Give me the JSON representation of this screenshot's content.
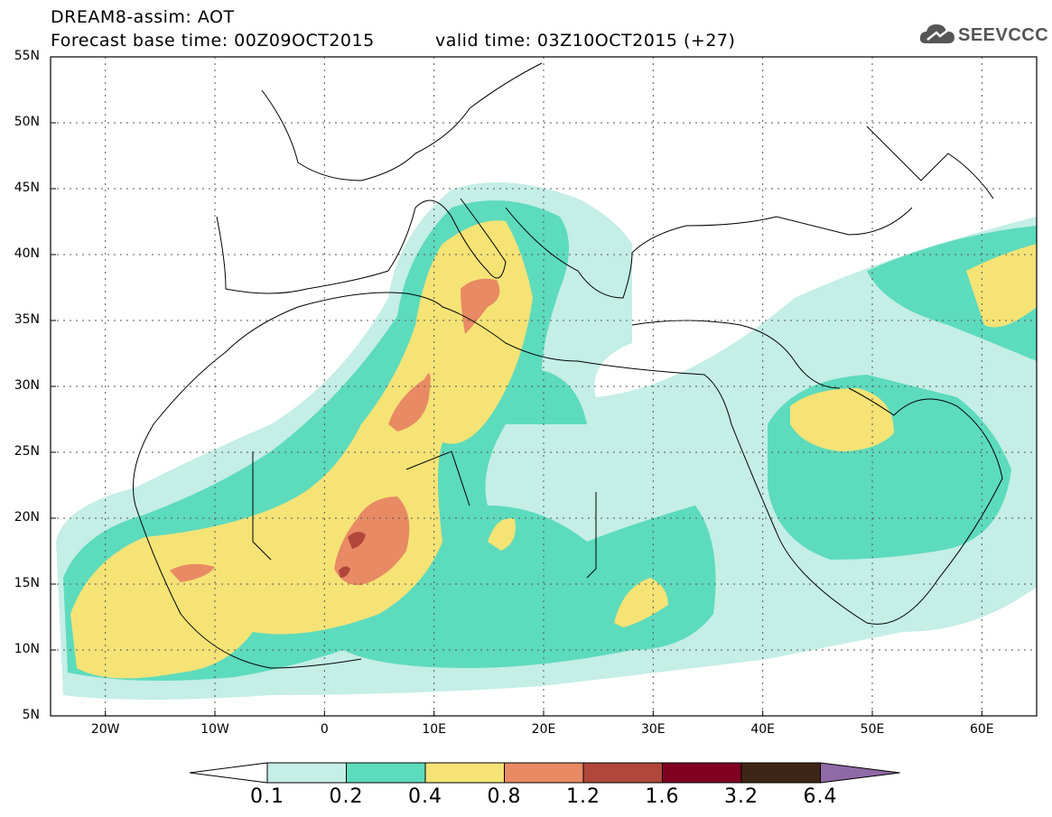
{
  "header": {
    "title_line1": "DREAM8-assim: AOT",
    "title_line2": "Forecast base time: 00Z09OCT2015",
    "valid_time": "valid time: 03Z10OCT2015 (+27)"
  },
  "logo": {
    "text": "SEEVCCC",
    "icon": "cloud-icon"
  },
  "map": {
    "lon_range": [
      -25,
      65
    ],
    "lat_range": [
      5,
      55
    ],
    "lat_ticks": [
      "5N",
      "10N",
      "15N",
      "20N",
      "25N",
      "30N",
      "35N",
      "40N",
      "45N",
      "50N",
      "55N"
    ],
    "lon_ticks": [
      "20W",
      "10W",
      "0",
      "10E",
      "20E",
      "30E",
      "40E",
      "50E",
      "60E"
    ],
    "gridlines": "dotted"
  },
  "colorbar": {
    "labels": [
      "0.1",
      "0.2",
      "0.4",
      "0.8",
      "1.2",
      "1.6",
      "3.2",
      "6.4"
    ],
    "colors": [
      "#ffffff",
      "#c4eee6",
      "#5ddbbd",
      "#f5e376",
      "#e88a64",
      "#b0473a",
      "#7f0020",
      "#3d2616",
      "#8f6aa6"
    ]
  }
}
